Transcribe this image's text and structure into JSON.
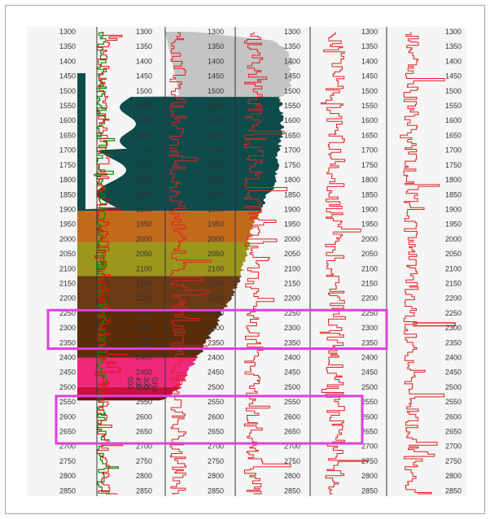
{
  "chart_data": {
    "type": "line",
    "title": "",
    "y_axis": {
      "range": [
        1300,
        2860
      ],
      "direction": "increasing downward",
      "tick_step": 50,
      "tick_labels": [
        "1300",
        "1350",
        "1400",
        "1450",
        "1500",
        "1550",
        "1600",
        "1650",
        "1700",
        "1750",
        "1800",
        "1850",
        "1900",
        "1950",
        "2000",
        "2050",
        "2100",
        "2150",
        "2200",
        "2250",
        "2300",
        "2350",
        "2400",
        "2450",
        "2500",
        "2550",
        "2600",
        "2650",
        "2700",
        "2750",
        "2800",
        "2850"
      ]
    },
    "tracks": [
      {
        "name": "",
        "type": "log curves",
        "colors": [
          "#ff0000",
          "#108a00"
        ]
      },
      {
        "name": "",
        "type": "log curve",
        "color": "#dd2222"
      },
      {
        "name": "",
        "type": "log curve",
        "color": "#dd2222"
      },
      {
        "name": "",
        "type": "log curve",
        "color": "#dd2222"
      },
      {
        "name": "",
        "type": "log curve",
        "color": "#dd2222"
      }
    ],
    "formations": [
      {
        "top": 1300,
        "base": 1520,
        "color": "#c4c4c4"
      },
      {
        "top": 1520,
        "base": 1905,
        "color": "#0e4b4b"
      },
      {
        "top": 1905,
        "base": 2010,
        "color": "#c16a1c"
      },
      {
        "top": 2010,
        "base": 2125,
        "color": "#9b961c"
      },
      {
        "top": 2125,
        "base": 2230,
        "color": "#6a3a14"
      },
      {
        "top": 2230,
        "base": 2400,
        "color": "#5a2e0a"
      },
      {
        "top": 2400,
        "base": 2500,
        "color": "#f0287a"
      },
      {
        "top": 2500,
        "base": 2530,
        "color": "#c9103d"
      },
      {
        "top": 2530,
        "base": 2545,
        "color": "#7a0e0e"
      }
    ],
    "rotated_labels": [
      "500",
      "400",
      "300",
      "GRA"
    ],
    "highlight_zones": [
      {
        "top": 2240,
        "base": 2370,
        "color": "#e040e0"
      },
      {
        "top": 2530,
        "base": 2690,
        "color": "#e040e0"
      }
    ]
  }
}
